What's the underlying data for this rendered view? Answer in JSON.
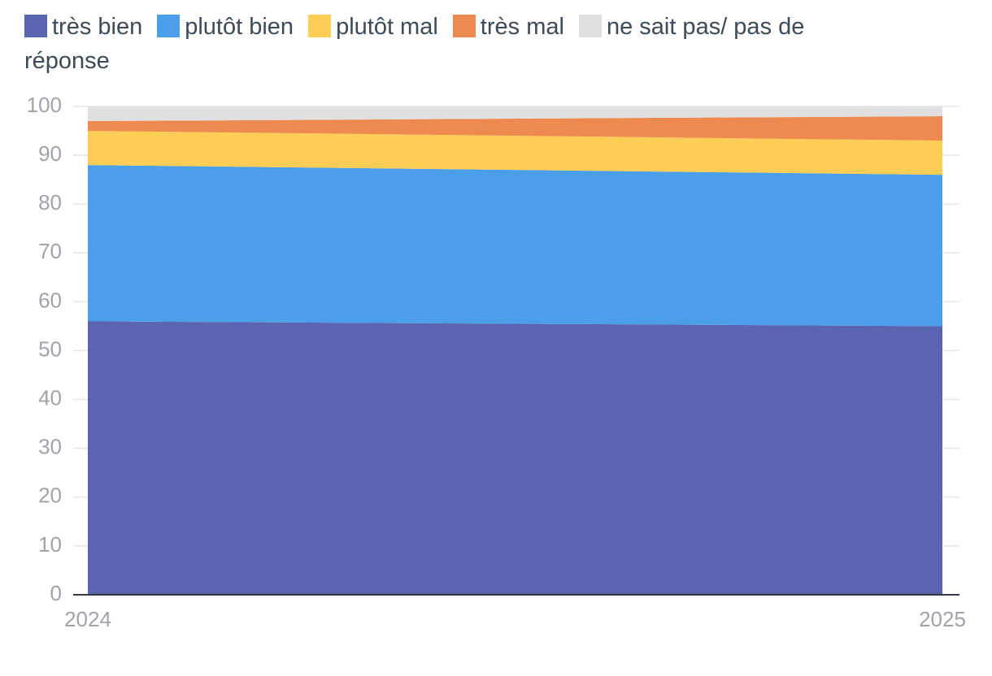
{
  "chart_data": {
    "type": "stacked-area",
    "categories": [
      "2024",
      "2025"
    ],
    "series": [
      {
        "name": "très bien",
        "color": "#5a64b1",
        "values": [
          56,
          55
        ]
      },
      {
        "name": "plutôt bien",
        "color": "#4a9fe8",
        "values": [
          32,
          31
        ]
      },
      {
        "name": "plutôt mal",
        "color": "#fdcd55",
        "values": [
          7,
          7
        ]
      },
      {
        "name": "très mal",
        "color": "#ee8a50",
        "values": [
          2,
          5
        ]
      },
      {
        "name": "ne sait pas/ pas de réponse",
        "color": "#e0e0e0",
        "values": [
          3,
          2
        ]
      }
    ],
    "ylim": [
      0,
      100
    ],
    "yticks": [
      0,
      10,
      20,
      30,
      40,
      50,
      60,
      70,
      80,
      90,
      100
    ],
    "grid": true
  }
}
